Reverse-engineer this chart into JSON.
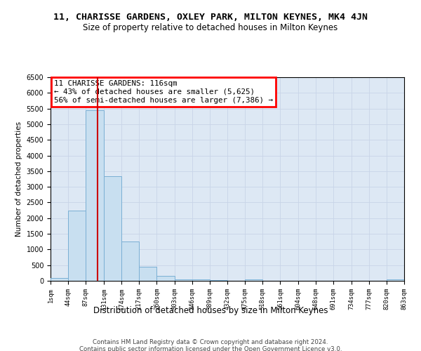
{
  "title": "11, CHARISSE GARDENS, OXLEY PARK, MILTON KEYNES, MK4 4JN",
  "subtitle": "Size of property relative to detached houses in Milton Keynes",
  "xlabel": "Distribution of detached houses by size in Milton Keynes",
  "ylabel": "Number of detached properties",
  "footer_line1": "Contains HM Land Registry data © Crown copyright and database right 2024.",
  "footer_line2": "Contains public sector information licensed under the Open Government Licence v3.0.",
  "annotation_title": "11 CHARISSE GARDENS: 116sqm",
  "annotation_line1": "← 43% of detached houses are smaller (5,625)",
  "annotation_line2": "56% of semi-detached houses are larger (7,386) →",
  "property_size": 116,
  "bin_edges": [
    1,
    44,
    87,
    131,
    174,
    217,
    260,
    303,
    346,
    389,
    432,
    475,
    518,
    561,
    604,
    648,
    691,
    734,
    777,
    820,
    863
  ],
  "bar_heights": [
    100,
    2250,
    5450,
    3350,
    1250,
    450,
    150,
    50,
    50,
    20,
    10,
    50,
    0,
    0,
    0,
    0,
    0,
    0,
    0,
    50
  ],
  "bar_color": "#c8dff0",
  "bar_edge_color": "#7aafd4",
  "vline_color": "#cc0000",
  "vline_x": 116,
  "grid_color": "#c8d4e8",
  "bg_color": "#dde8f4",
  "ylim": [
    0,
    6500
  ],
  "yticks": [
    0,
    500,
    1000,
    1500,
    2000,
    2500,
    3000,
    3500,
    4000,
    4500,
    5000,
    5500,
    6000,
    6500
  ]
}
